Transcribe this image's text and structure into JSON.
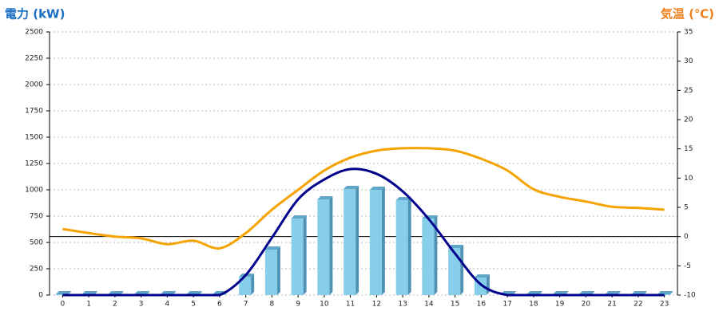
{
  "chart_data": {
    "type": "bar",
    "title": "電力 (kW)",
    "y2_title": "気温 (℃)",
    "categories": [
      "0",
      "1",
      "2",
      "3",
      "4",
      "5",
      "6",
      "7",
      "8",
      "9",
      "10",
      "11",
      "12",
      "13",
      "14",
      "15",
      "16",
      "17",
      "18",
      "19",
      "20",
      "21",
      "22",
      "23"
    ],
    "series": [
      {
        "type": "bar",
        "color": "#87ceeb",
        "values": [
          0,
          0,
          0,
          0,
          0,
          0,
          0,
          174,
          432,
          727,
          909,
          1008,
          1000,
          901,
          727,
          447,
          167,
          0,
          0,
          0,
          0,
          0,
          0,
          0
        ]
      },
      {
        "type": "line",
        "color": "#00008b",
        "values": [
          0,
          0,
          0,
          0,
          0,
          0,
          0,
          190,
          545,
          909,
          1098,
          1197,
          1152,
          985,
          720,
          394,
          98,
          0,
          0,
          0,
          0,
          0,
          0,
          0
        ]
      },
      {
        "type": "line",
        "axis": "y2",
        "color": "#f5a300",
        "values": [
          1.3,
          0.6,
          0,
          -0.3,
          -1.3,
          -0.7,
          -2,
          0.6,
          4.6,
          8,
          11.3,
          13.5,
          14.7,
          15.1,
          15.1,
          14.7,
          13.3,
          11.3,
          8.1,
          6.8,
          6,
          5.1,
          4.9,
          4.6
        ]
      }
    ],
    "ylim": [
      0,
      2500
    ],
    "yticks": [
      0,
      250,
      500,
      750,
      1000,
      1250,
      1500,
      1750,
      2000,
      2250,
      2500
    ],
    "y2lim": [
      -10,
      35
    ],
    "y2ticks": [
      -10,
      -5,
      0,
      5,
      10,
      15,
      20,
      25,
      30,
      35
    ],
    "grid": true,
    "title_color": "#1a6fc4",
    "y2_title_color": "#f07f1a"
  }
}
